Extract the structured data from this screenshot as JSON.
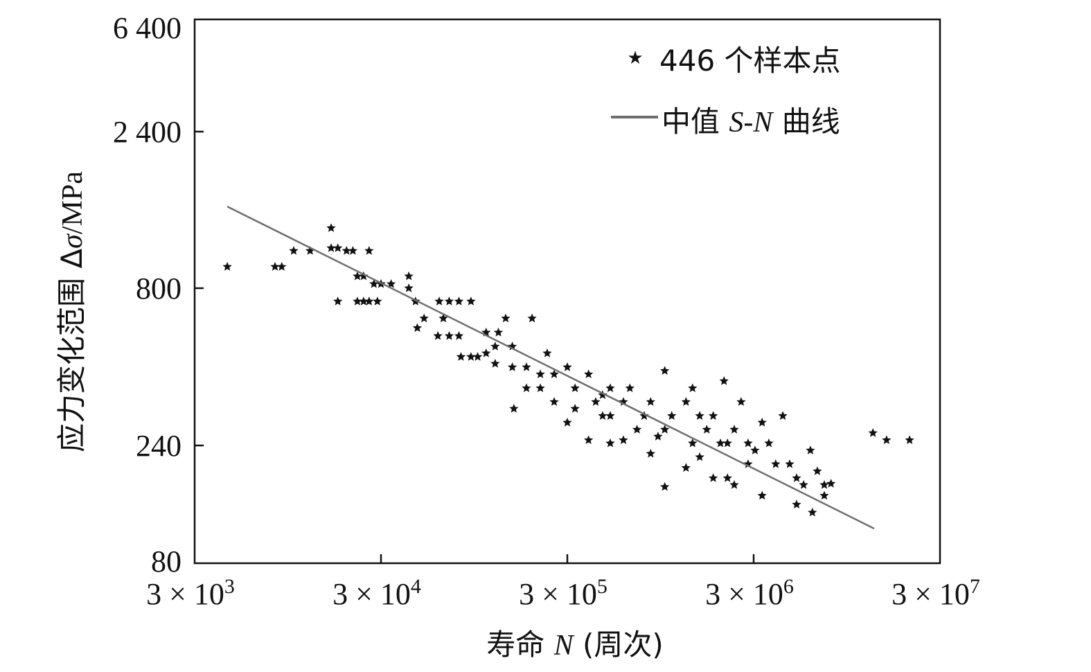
{
  "chart_data": {
    "type": "scatter",
    "title": "",
    "xlabel": "寿命 N (周次)",
    "xlabel_parts": {
      "prefix": "寿命 ",
      "var": "N",
      "suffix": " (周次)"
    },
    "ylabel": "应力变化范围 Δσ/MPa",
    "ylabel_parts": {
      "prefix": "应力变化范围 Δ",
      "var": "σ",
      "suffix": "/MPa"
    },
    "xscale": "log",
    "yscale": "log",
    "xlim": [
      3000,
      30000000
    ],
    "ylim": [
      80,
      6400
    ],
    "x_ticks": [
      3000,
      30000,
      300000,
      3000000,
      30000000
    ],
    "x_tick_labels": [
      {
        "base": "3 × 10",
        "exp": "3"
      },
      {
        "base": "3 × 10",
        "exp": "4"
      },
      {
        "base": "3 × 10",
        "exp": "5"
      },
      {
        "base": "3 × 10",
        "exp": "6"
      },
      {
        "base": "3 × 10",
        "exp": "7"
      }
    ],
    "y_ticks": [
      6400,
      2400,
      800,
      240,
      80
    ],
    "y_tick_labels": [
      "6 400",
      "2 400",
      "800",
      "240",
      "80"
    ],
    "grid": false,
    "legend_position": "top-right",
    "series": [
      {
        "name": "446 个样本点",
        "legend_label": {
          "prefix": "446 个样本点"
        },
        "kind": "scatter",
        "marker": "star",
        "color": "#111111",
        "points": [
          [
            4490,
            930
          ],
          [
            8100,
            930
          ],
          [
            8800,
            930
          ],
          [
            10200,
            1040
          ],
          [
            12500,
            1040
          ],
          [
            16200,
            1220
          ],
          [
            16200,
            1060
          ],
          [
            17600,
            1060
          ],
          [
            19600,
            1040
          ],
          [
            21200,
            1040
          ],
          [
            25900,
            1040
          ],
          [
            17600,
            723
          ],
          [
            22400,
            870
          ],
          [
            24200,
            870
          ],
          [
            22400,
            723
          ],
          [
            24200,
            723
          ],
          [
            25900,
            723
          ],
          [
            28700,
            723
          ],
          [
            27500,
            824
          ],
          [
            30000,
            824
          ],
          [
            34000,
            824
          ],
          [
            42300,
            870
          ],
          [
            42300,
            800
          ],
          [
            46000,
            723
          ],
          [
            61600,
            723
          ],
          [
            69700,
            723
          ],
          [
            78600,
            723
          ],
          [
            91200,
            723
          ],
          [
            51100,
            635
          ],
          [
            47000,
            590
          ],
          [
            60600,
            555
          ],
          [
            69700,
            555
          ],
          [
            78600,
            555
          ],
          [
            64800,
            635
          ],
          [
            80600,
            473
          ],
          [
            91200,
            473
          ],
          [
            99100,
            473
          ],
          [
            110000,
            570
          ],
          [
            123000,
            512
          ],
          [
            140000,
            635
          ],
          [
            155000,
            318
          ],
          [
            194000,
            635
          ],
          [
            123000,
            449
          ],
          [
            152000,
            437
          ],
          [
            181000,
            437
          ],
          [
            215000,
            372
          ],
          [
            234000,
            486
          ],
          [
            255000,
            414
          ],
          [
            300000,
            437
          ],
          [
            330000,
            372
          ],
          [
            390000,
            414
          ],
          [
            426000,
            335
          ],
          [
            510000,
            372
          ],
          [
            510000,
            301
          ],
          [
            600000,
            335
          ],
          [
            650000,
            372
          ],
          [
            776000,
            301
          ],
          [
            840000,
            335
          ],
          [
            1000000,
            425
          ],
          [
            1000000,
            271
          ],
          [
            1090000,
            301
          ],
          [
            1300000,
            335
          ],
          [
            1410000,
            372
          ],
          [
            1540000,
            301
          ],
          [
            1680000,
            271
          ],
          [
            1820000,
            301
          ],
          [
            2080000,
            393
          ],
          [
            2170000,
            244
          ],
          [
            2360000,
            271
          ],
          [
            2570000,
            335
          ],
          [
            2800000,
            244
          ],
          [
            3050000,
            229
          ],
          [
            3330000,
            286
          ],
          [
            3620000,
            244
          ],
          [
            3940000,
            201
          ],
          [
            4300000,
            301
          ],
          [
            4680000,
            201
          ],
          [
            5100000,
            176
          ],
          [
            5560000,
            165
          ],
          [
            6050000,
            229
          ],
          [
            6590000,
            188
          ],
          [
            7180000,
            165
          ],
          [
            7800000,
            167
          ],
          [
            3330000,
            149
          ],
          [
            5100000,
            137
          ],
          [
            6200000,
            127
          ],
          [
            7180000,
            149
          ],
          [
            1000000,
            162
          ],
          [
            300000,
            286
          ],
          [
            390000,
            250
          ],
          [
            510000,
            244
          ],
          [
            600000,
            250
          ],
          [
            840000,
            222
          ],
          [
            1300000,
            194
          ],
          [
            1820000,
            176
          ],
          [
            2170000,
            176
          ],
          [
            2800000,
            201
          ],
          [
            2360000,
            165
          ],
          [
            1410000,
            244
          ],
          [
            710000,
            271
          ],
          [
            464000,
            301
          ],
          [
            255000,
            335
          ],
          [
            181000,
            372
          ],
          [
            152000,
            512
          ],
          [
            128000,
            570
          ],
          [
            110000,
            486
          ],
          [
            215000,
            414
          ],
          [
            330000,
            318
          ],
          [
            464000,
            353
          ],
          [
            920000,
            257
          ],
          [
            1540000,
            215
          ],
          [
            1990000,
            244
          ],
          [
            13100000,
            264
          ],
          [
            15500000,
            250
          ],
          [
            20600000,
            250
          ]
        ]
      },
      {
        "name": "中值 S-N 曲线",
        "legend_label": {
          "prefix": "中值 ",
          "var": "S-N",
          "suffix": " 曲线"
        },
        "kind": "line",
        "color": "#6e6e6e",
        "points": [
          [
            4490,
            1419
          ],
          [
            13300000,
            109
          ]
        ]
      }
    ]
  }
}
